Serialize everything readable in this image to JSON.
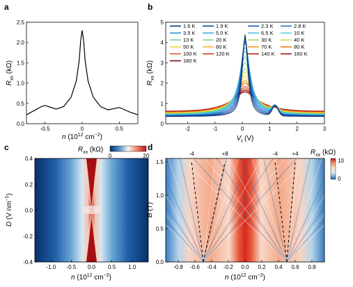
{
  "panel_labels": {
    "a": "a",
    "b": "b",
    "c": "c",
    "d": "d"
  },
  "chart_data": [
    {
      "panel": "a",
      "type": "line",
      "xlabel": "n (10^12 cm^-2)",
      "ylabel": "R_xx (kΩ)",
      "xlim": [
        -0.75,
        0.75
      ],
      "ylim": [
        0,
        2.5
      ],
      "xticks": [
        "-0.5",
        "0",
        "0.5"
      ],
      "yticks": [
        "0.0",
        "0.5",
        "1.0",
        "1.5",
        "2.0",
        "2.5"
      ],
      "series": [
        {
          "x": [
            -0.75,
            -0.65,
            -0.55,
            -0.5,
            -0.45,
            -0.35,
            -0.25,
            -0.15,
            -0.08,
            -0.04,
            -0.02,
            0,
            0.02,
            0.04,
            0.08,
            0.15,
            0.25,
            0.35,
            0.45,
            0.5,
            0.55,
            0.65,
            0.75
          ],
          "values": [
            0.22,
            0.32,
            0.42,
            0.45,
            0.42,
            0.36,
            0.42,
            0.65,
            1.05,
            1.55,
            2.05,
            2.3,
            2.05,
            1.55,
            1.05,
            0.65,
            0.42,
            0.34,
            0.38,
            0.4,
            0.36,
            0.28,
            0.22
          ]
        }
      ]
    },
    {
      "panel": "b",
      "type": "line",
      "xlabel": "V_t (V)",
      "ylabel": "R_xx (kΩ)",
      "xlim": [
        -2.8,
        3
      ],
      "ylim": [
        0,
        5
      ],
      "xticks": [
        "-2",
        "-1",
        "0",
        "1",
        "2",
        "3"
      ],
      "yticks": [
        "0",
        "1",
        "2",
        "3",
        "4",
        "5"
      ],
      "legend": [
        "1.6 K",
        "1.9 K",
        "2.3 K",
        "2.8 K",
        "3.5 K",
        "5.0 K",
        "6.5 K",
        "10 K",
        "13 K",
        "20 K",
        "30 K",
        "40 K",
        "50 K",
        "60 K",
        "70 K",
        "80 K",
        "100 K",
        "120 K",
        "140 K",
        "160 K",
        "180 K"
      ],
      "series_colors": [
        "#08306b",
        "#0c3f8f",
        "#1155b0",
        "#1f6fc8",
        "#2f8ad8",
        "#3fa3e0",
        "#4dbbe0",
        "#50cccc",
        "#60d4a8",
        "#80d880",
        "#a8dc5c",
        "#d0dc40",
        "#ecd030",
        "#f5b828",
        "#f59a20",
        "#f07818",
        "#e45a14",
        "#d43a12",
        "#c02010",
        "#a01010",
        "#800808"
      ],
      "peak_values": [
        4.4,
        4.3,
        4.2,
        4.1,
        4.0,
        3.9,
        3.7,
        3.5,
        3.2,
        2.9,
        2.6,
        2.4,
        2.2,
        2.0,
        1.9,
        1.8,
        1.65,
        1.55,
        1.45,
        1.38,
        1.3
      ],
      "peak_x": 0.1
    },
    {
      "panel": "c",
      "type": "heatmap",
      "xlabel": "n (10^12 cm^-2)",
      "ylabel": "D (V nm^-1)",
      "xlim": [
        -1.4,
        1.4
      ],
      "ylim": [
        -0.4,
        0.4
      ],
      "xticks": [
        "-1.0",
        "-0.5",
        "0.0",
        "0.5",
        "1.0"
      ],
      "yticks": [
        "-0.4",
        "-0.2",
        "0.0",
        "0.2",
        "0.4"
      ],
      "colorbar": {
        "label": "R_xx (kΩ)",
        "min": "0",
        "max": "20"
      }
    },
    {
      "panel": "d",
      "type": "heatmap",
      "xlabel": "n (10^12 cm^-2)",
      "ylabel": "B (T)",
      "xlim": [
        -0.95,
        0.95
      ],
      "ylim": [
        0,
        1.55
      ],
      "xticks": [
        "-0.8",
        "-0.6",
        "-0.4",
        "-0.2",
        "0.0",
        "0.2",
        "0.4",
        "0.6",
        "0.8"
      ],
      "yticks": [
        "0.0",
        "0.5",
        "1.0",
        "1.5"
      ],
      "fan_labels": [
        "-4",
        "+8",
        "-4",
        "+4"
      ],
      "colorbar": {
        "label": "R_xx (kΩ)",
        "min": "0",
        "max": "10"
      }
    }
  ]
}
